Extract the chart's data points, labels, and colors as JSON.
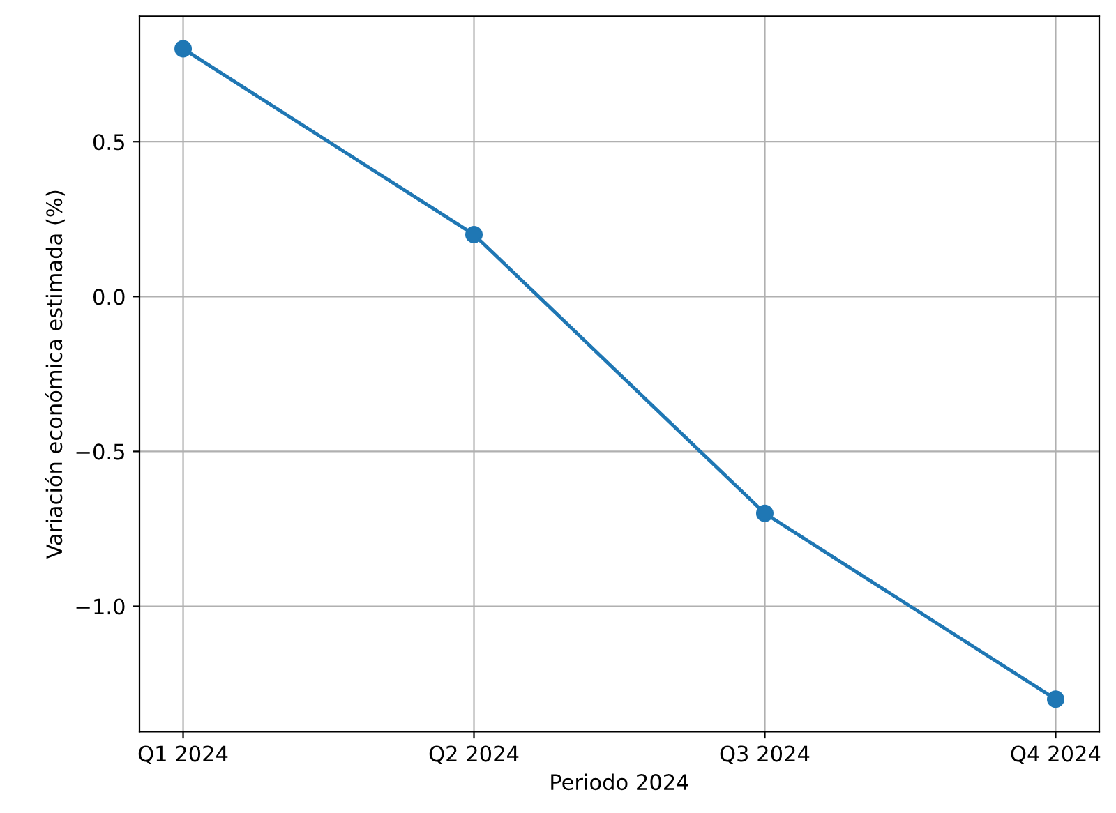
{
  "chart_data": {
    "type": "line",
    "xlabel": "Periodo 2024",
    "ylabel": "Variación económica estimada (%)",
    "categories": [
      "Q1 2024",
      "Q2 2024",
      "Q3 2024",
      "Q4 2024"
    ],
    "series": [
      {
        "color": "#1f77b4",
        "values": [
          0.8,
          0.2,
          -0.7,
          -1.3
        ]
      }
    ],
    "ylim": [
      -1.405,
      0.905
    ],
    "yticks": [
      {
        "value": -1.0,
        "label": "−1.0"
      },
      {
        "value": -0.5,
        "label": "−0.5"
      },
      {
        "value": 0.0,
        "label": "0.0"
      },
      {
        "value": 0.5,
        "label": "0.5"
      }
    ],
    "grid": true,
    "marker": "circle",
    "line_style": "solid"
  }
}
